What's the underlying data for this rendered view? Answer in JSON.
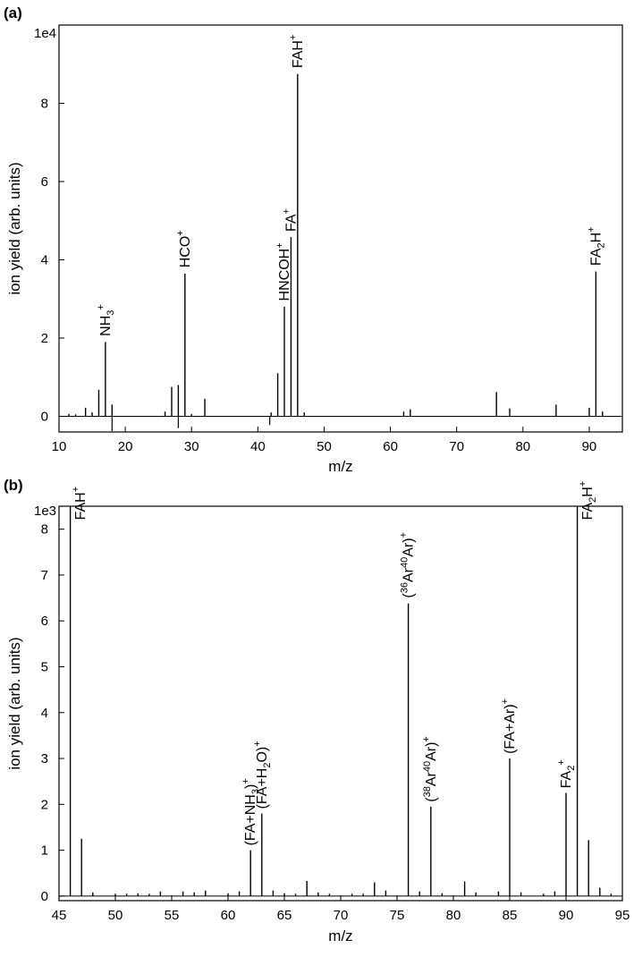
{
  "chart_data": [
    {
      "type": "line",
      "panel_label": "(a)",
      "xlabel": "m/z",
      "ylabel": "ion yield (arb. units)",
      "y_multiplier": "1e4",
      "xlim": [
        10,
        95
      ],
      "ylim": [
        -0.4,
        10
      ],
      "x_ticks": [
        "10",
        "20",
        "30",
        "40",
        "50",
        "60",
        "70",
        "80",
        "90"
      ],
      "y_ticks": [
        "0",
        "2",
        "4",
        "6",
        "8"
      ],
      "grid": false,
      "series": [
        {
          "peaks": [
            {
              "x": 11.5,
              "y": 0.06
            },
            {
              "x": 12.5,
              "y": 0.05
            },
            {
              "x": 14,
              "y": 0.22
            },
            {
              "x": 15,
              "y": 0.1
            },
            {
              "x": 16,
              "y": 0.68
            },
            {
              "x": 17,
              "y": 1.9
            },
            {
              "x": 18,
              "y": 0.3
            },
            {
              "x": 26,
              "y": 0.12
            },
            {
              "x": 27,
              "y": 0.75
            },
            {
              "x": 28,
              "y": 0.8
            },
            {
              "x": 29,
              "y": 3.65
            },
            {
              "x": 30,
              "y": 0.06
            },
            {
              "x": 32,
              "y": 0.45
            },
            {
              "x": 42,
              "y": 0.1
            },
            {
              "x": 43,
              "y": 1.1
            },
            {
              "x": 44,
              "y": 2.8
            },
            {
              "x": 45,
              "y": 4.58
            },
            {
              "x": 46,
              "y": 8.75
            },
            {
              "x": 47,
              "y": 0.1
            },
            {
              "x": 62,
              "y": 0.12
            },
            {
              "x": 63,
              "y": 0.18
            },
            {
              "x": 76,
              "y": 0.62
            },
            {
              "x": 78,
              "y": 0.2
            },
            {
              "x": 85,
              "y": 0.3
            },
            {
              "x": 90,
              "y": 0.22
            },
            {
              "x": 91,
              "y": 3.7
            },
            {
              "x": 92,
              "y": 0.12
            }
          ],
          "dips": [
            {
              "x": 18,
              "y": -0.38
            },
            {
              "x": 28,
              "y": -0.3
            },
            {
              "x": 41.8,
              "y": -0.22
            }
          ]
        }
      ],
      "annotations": [
        {
          "name": "nh3",
          "base": "NH",
          "sub": "3",
          "sup": "+",
          "x": 17,
          "y": 2.05
        },
        {
          "name": "hco",
          "base": "HCO",
          "sub": "",
          "sup": "+",
          "x": 29,
          "y": 3.8
        },
        {
          "name": "hncoh",
          "base": "HNCOH",
          "sub": "",
          "sup": "+",
          "x": 44,
          "y": 2.95
        },
        {
          "name": "fa",
          "base": "FA",
          "sub": "",
          "sup": "+",
          "x": 45,
          "y": 4.72
        },
        {
          "name": "fah",
          "base": "FAH",
          "sub": "",
          "sup": "+",
          "x": 46,
          "y": 8.9
        },
        {
          "name": "fa2h",
          "base": "FA",
          "sub": "2",
          "sup": "H",
          "sup2": "+",
          "x": 91,
          "y": 3.85
        }
      ]
    },
    {
      "type": "line",
      "panel_label": "(b)",
      "xlabel": "m/z",
      "ylabel": "ion yield (arb. units)",
      "y_multiplier": "1e3",
      "xlim": [
        45,
        95
      ],
      "ylim": [
        -0.1,
        8.5
      ],
      "x_ticks": [
        "45",
        "50",
        "55",
        "60",
        "65",
        "70",
        "75",
        "80",
        "85",
        "90",
        "95"
      ],
      "y_ticks": [
        "0",
        "1",
        "2",
        "3",
        "4",
        "5",
        "6",
        "7",
        "8"
      ],
      "grid": false,
      "series": [
        {
          "peaks": [
            {
              "x": 46,
              "y": 8.6
            },
            {
              "x": 47,
              "y": 1.25
            },
            {
              "x": 48,
              "y": 0.08
            },
            {
              "x": 50,
              "y": 0.05
            },
            {
              "x": 51,
              "y": 0.05
            },
            {
              "x": 52,
              "y": 0.06
            },
            {
              "x": 53,
              "y": 0.05
            },
            {
              "x": 54,
              "y": 0.1
            },
            {
              "x": 56,
              "y": 0.1
            },
            {
              "x": 57,
              "y": 0.08
            },
            {
              "x": 58,
              "y": 0.12
            },
            {
              "x": 60,
              "y": 0.06
            },
            {
              "x": 61,
              "y": 0.1
            },
            {
              "x": 62,
              "y": 1.0
            },
            {
              "x": 63,
              "y": 1.8
            },
            {
              "x": 64,
              "y": 0.12
            },
            {
              "x": 65,
              "y": 0.06
            },
            {
              "x": 66,
              "y": 0.05
            },
            {
              "x": 67,
              "y": 0.33
            },
            {
              "x": 68,
              "y": 0.08
            },
            {
              "x": 69,
              "y": 0.05
            },
            {
              "x": 71,
              "y": 0.05
            },
            {
              "x": 72,
              "y": 0.05
            },
            {
              "x": 73,
              "y": 0.3
            },
            {
              "x": 74,
              "y": 0.12
            },
            {
              "x": 76,
              "y": 6.38
            },
            {
              "x": 77,
              "y": 0.1
            },
            {
              "x": 78,
              "y": 1.95
            },
            {
              "x": 79,
              "y": 0.06
            },
            {
              "x": 81,
              "y": 0.32
            },
            {
              "x": 82,
              "y": 0.08
            },
            {
              "x": 84,
              "y": 0.1
            },
            {
              "x": 85,
              "y": 3.0
            },
            {
              "x": 86,
              "y": 0.08
            },
            {
              "x": 88,
              "y": 0.05
            },
            {
              "x": 89,
              "y": 0.1
            },
            {
              "x": 90,
              "y": 2.25
            },
            {
              "x": 91,
              "y": 8.6
            },
            {
              "x": 92,
              "y": 1.22
            },
            {
              "x": 93,
              "y": 0.18
            },
            {
              "x": 94,
              "y": 0.05
            }
          ],
          "dips": []
        }
      ],
      "annotations": [
        {
          "name": "fah",
          "base": "FAH",
          "sub": "",
          "sup": "+",
          "x": 46.9,
          "y": 8.2
        },
        {
          "name": "fa-nh3",
          "base": "(FA+NH",
          "sub": "3",
          "sup": ")",
          "sup2": "+",
          "x": 62,
          "y": 1.1
        },
        {
          "name": "fa-h2o",
          "base": "(FA+H",
          "sub": "2",
          "sup": "O)",
          "sup2": "+",
          "x": 63,
          "y": 1.9
        },
        {
          "name": "ar36-ar40",
          "pre": "(",
          "iso1": "36",
          "mid": "Ar",
          "iso2": "40",
          "post": "Ar)",
          "sup2": "+",
          "x": 76,
          "y": 6.5
        },
        {
          "name": "ar38-ar40",
          "pre": "(",
          "iso1": "38",
          "mid": "Ar",
          "iso2": "40",
          "post": "Ar)",
          "sup2": "+",
          "x": 78,
          "y": 2.05
        },
        {
          "name": "fa-ar",
          "base": "(FA+Ar)",
          "sub": "",
          "sup": "+",
          "x": 85,
          "y": 3.1
        },
        {
          "name": "fa2",
          "base": "FA",
          "sub": "2",
          "sup": "+",
          "x": 90,
          "y": 2.35
        },
        {
          "name": "fa2h",
          "base": "FA",
          "sub": "2",
          "sup": "H",
          "sup2": "+",
          "x": 91.9,
          "y": 8.2
        }
      ]
    }
  ]
}
